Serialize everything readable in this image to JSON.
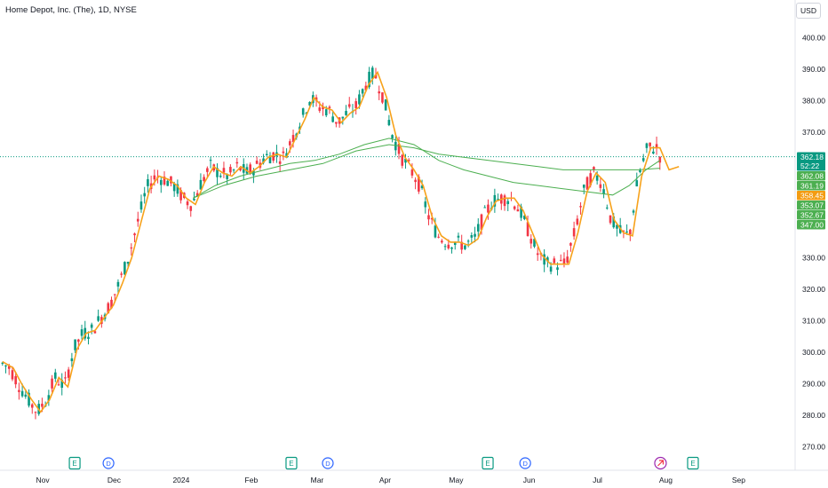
{
  "header": {
    "title": "Home Depot, Inc. (The), 1D, NYSE",
    "currency": "USD"
  },
  "chart_data": {
    "type": "candlestick",
    "title": "Home Depot, Inc. (The), 1D, NYSE",
    "ylim": [
      264,
      407
    ],
    "y_ticks": [
      270,
      280,
      290,
      300,
      310,
      320,
      330,
      340,
      350,
      360,
      370,
      380,
      390,
      400
    ],
    "y_tick_labels": [
      "270.00",
      "280.00",
      "290.00",
      "300.00",
      "310.00",
      "320.00",
      "330.00",
      "340.00",
      "350.00",
      "360.00",
      "370.00",
      "380.00",
      "390.00",
      "400.00"
    ],
    "x_labels": [
      {
        "label": "Nov",
        "x": 0.0516
      },
      {
        "label": "Dec",
        "x": 0.1378
      },
      {
        "label": "2024",
        "x": 0.2188
      },
      {
        "label": "Feb",
        "x": 0.3035
      },
      {
        "label": "Mar",
        "x": 0.383
      },
      {
        "label": "Apr",
        "x": 0.4651
      },
      {
        "label": "May",
        "x": 0.5509
      },
      {
        "label": "Jun",
        "x": 0.6391
      },
      {
        "label": "Jul",
        "x": 0.7216
      },
      {
        "label": "Aug",
        "x": 0.8041
      },
      {
        "label": "Sep",
        "x": 0.8921
      }
    ],
    "price_tags": [
      {
        "value": "362.18",
        "extra": "52:22",
        "color": "#089981"
      },
      {
        "value": "362.08",
        "color": "#4caf50"
      },
      {
        "value": "361.19",
        "color": "#4caf50"
      },
      {
        "value": "358.45",
        "color": "#f39c12"
      },
      {
        "value": "353.07",
        "color": "#4caf50"
      },
      {
        "value": "352.67",
        "color": "#4caf50"
      },
      {
        "value": "347.00",
        "color": "#4caf50"
      }
    ],
    "last_price": 362.18,
    "event_markers": [
      {
        "type": "E",
        "x": 0.0902
      },
      {
        "type": "D",
        "x": 0.131
      },
      {
        "type": "E",
        "x": 0.3519
      },
      {
        "type": "D",
        "x": 0.3959
      },
      {
        "type": "E",
        "x": 0.5891
      },
      {
        "type": "D",
        "x": 0.6343
      },
      {
        "type": "S",
        "x": 0.7977
      },
      {
        "type": "E",
        "x": 0.8369
      }
    ],
    "colors": {
      "up": "#089981",
      "down": "#f23645",
      "fast_ma": "#f7a21b",
      "slow_ma": "#4caf50"
    },
    "fast_ma": [
      [
        0.003,
        297
      ],
      [
        0.016,
        295
      ],
      [
        0.026,
        290
      ],
      [
        0.038,
        285
      ],
      [
        0.049,
        281
      ],
      [
        0.06,
        285
      ],
      [
        0.071,
        292
      ],
      [
        0.082,
        289
      ],
      [
        0.093,
        301
      ],
      [
        0.104,
        306
      ],
      [
        0.115,
        307
      ],
      [
        0.126,
        311
      ],
      [
        0.137,
        315
      ],
      [
        0.148,
        322
      ],
      [
        0.159,
        330
      ],
      [
        0.17,
        341
      ],
      [
        0.181,
        352
      ],
      [
        0.192,
        356
      ],
      [
        0.203,
        355
      ],
      [
        0.214,
        353
      ],
      [
        0.225,
        349
      ],
      [
        0.236,
        347
      ],
      [
        0.247,
        354
      ],
      [
        0.258,
        359
      ],
      [
        0.269,
        357
      ],
      [
        0.28,
        356
      ],
      [
        0.291,
        359
      ],
      [
        0.302,
        357
      ],
      [
        0.313,
        359
      ],
      [
        0.324,
        362
      ],
      [
        0.335,
        363
      ],
      [
        0.346,
        362
      ],
      [
        0.357,
        368
      ],
      [
        0.368,
        374
      ],
      [
        0.379,
        381
      ],
      [
        0.39,
        378
      ],
      [
        0.401,
        377
      ],
      [
        0.412,
        373
      ],
      [
        0.423,
        376
      ],
      [
        0.434,
        378
      ],
      [
        0.445,
        385
      ],
      [
        0.456,
        389
      ],
      [
        0.467,
        381
      ],
      [
        0.478,
        369
      ],
      [
        0.489,
        362
      ],
      [
        0.5,
        358
      ],
      [
        0.511,
        353
      ],
      [
        0.522,
        343
      ],
      [
        0.533,
        337
      ],
      [
        0.544,
        335
      ],
      [
        0.555,
        335
      ],
      [
        0.566,
        334
      ],
      [
        0.577,
        336
      ],
      [
        0.588,
        343
      ],
      [
        0.599,
        348
      ],
      [
        0.61,
        349
      ],
      [
        0.621,
        349
      ],
      [
        0.632,
        345
      ],
      [
        0.643,
        338
      ],
      [
        0.654,
        331
      ],
      [
        0.665,
        328
      ],
      [
        0.676,
        328
      ],
      [
        0.687,
        328
      ],
      [
        0.698,
        338
      ],
      [
        0.709,
        351
      ],
      [
        0.72,
        357
      ],
      [
        0.731,
        354
      ],
      [
        0.742,
        342
      ],
      [
        0.753,
        338
      ],
      [
        0.764,
        337
      ],
      [
        0.775,
        356
      ],
      [
        0.786,
        365
      ],
      [
        0.797,
        365
      ],
      [
        0.808,
        358
      ],
      [
        0.82,
        359
      ]
    ],
    "slow_ma1": [
      [
        0.233,
        349
      ],
      [
        0.26,
        353
      ],
      [
        0.29,
        356
      ],
      [
        0.32,
        358
      ],
      [
        0.35,
        360
      ],
      [
        0.38,
        361
      ],
      [
        0.41,
        363
      ],
      [
        0.44,
        366
      ],
      [
        0.47,
        368
      ],
      [
        0.5,
        366
      ],
      [
        0.53,
        361
      ],
      [
        0.56,
        358
      ],
      [
        0.59,
        356
      ],
      [
        0.62,
        354
      ],
      [
        0.65,
        353
      ],
      [
        0.68,
        352
      ],
      [
        0.71,
        351
      ],
      [
        0.74,
        350
      ],
      [
        0.76,
        353
      ],
      [
        0.78,
        358
      ],
      [
        0.797,
        361
      ]
    ],
    "slow_ma2": [
      [
        0.233,
        349
      ],
      [
        0.27,
        353
      ],
      [
        0.31,
        356
      ],
      [
        0.35,
        358
      ],
      [
        0.39,
        360
      ],
      [
        0.43,
        364
      ],
      [
        0.47,
        366
      ],
      [
        0.5,
        365
      ],
      [
        0.53,
        363
      ],
      [
        0.56,
        362
      ],
      [
        0.59,
        361
      ],
      [
        0.62,
        360
      ],
      [
        0.65,
        359
      ],
      [
        0.68,
        358
      ],
      [
        0.71,
        358
      ],
      [
        0.74,
        358
      ],
      [
        0.77,
        358
      ],
      [
        0.797,
        358.5
      ]
    ]
  }
}
